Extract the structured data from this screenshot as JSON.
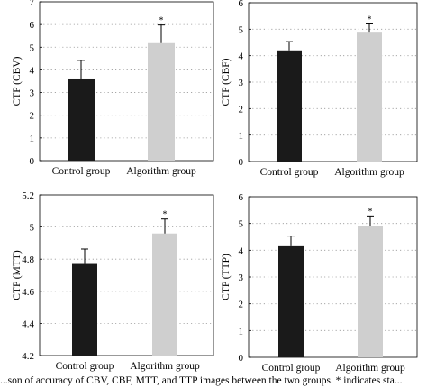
{
  "chart_data": [
    {
      "type": "bar",
      "ylabel": "CTP (CBV)",
      "categories": [
        "Control group",
        "Algorithm group"
      ],
      "values": [
        3.62,
        5.18
      ],
      "errors": [
        0.8,
        0.8
      ],
      "annotations": [
        "",
        "*"
      ],
      "ylim": [
        0,
        7
      ],
      "yticks": [
        "0",
        "1",
        "2",
        "3",
        "4",
        "5",
        "6",
        "7"
      ],
      "grid": true,
      "colors": [
        "#1a1a1a",
        "#cfcfcf"
      ]
    },
    {
      "type": "bar",
      "ylabel": "CTP (CBF)",
      "categories": [
        "Control group",
        "Algorithm group"
      ],
      "values": [
        4.2,
        4.87
      ],
      "errors": [
        0.33,
        0.33
      ],
      "annotations": [
        "",
        "*"
      ],
      "ylim": [
        0,
        6
      ],
      "yticks": [
        "0",
        "1",
        "2",
        "3",
        "4",
        "5",
        "6"
      ],
      "grid": true,
      "colors": [
        "#1a1a1a",
        "#cfcfcf"
      ]
    },
    {
      "type": "bar",
      "ylabel": "CTP (MTT)",
      "categories": [
        "Control group",
        "Algorithm group"
      ],
      "values": [
        4.77,
        4.96
      ],
      "errors": [
        0.093,
        0.09
      ],
      "annotations": [
        "",
        "*"
      ],
      "ylim": [
        4.2,
        5.2
      ],
      "yticks": [
        "4.2",
        "4.4",
        "4.6",
        "4.8",
        "5",
        "5.2"
      ],
      "grid": true,
      "colors": [
        "#1a1a1a",
        "#cfcfcf"
      ]
    },
    {
      "type": "bar",
      "ylabel": "CTP (TTP)",
      "categories": [
        "Control group",
        "Algorithm group"
      ],
      "values": [
        4.15,
        4.9
      ],
      "errors": [
        0.38,
        0.38
      ],
      "annotations": [
        "",
        "*"
      ],
      "ylim": [
        0,
        6
      ],
      "yticks": [
        "0",
        "1",
        "2",
        "3",
        "4",
        "5",
        "6"
      ],
      "grid": true,
      "colors": [
        "#1a1a1a",
        "#cfcfcf"
      ]
    }
  ],
  "caption": "...son of accuracy of CBV, CBF, MTT, and TTP images between the two groups. * indicates sta..."
}
